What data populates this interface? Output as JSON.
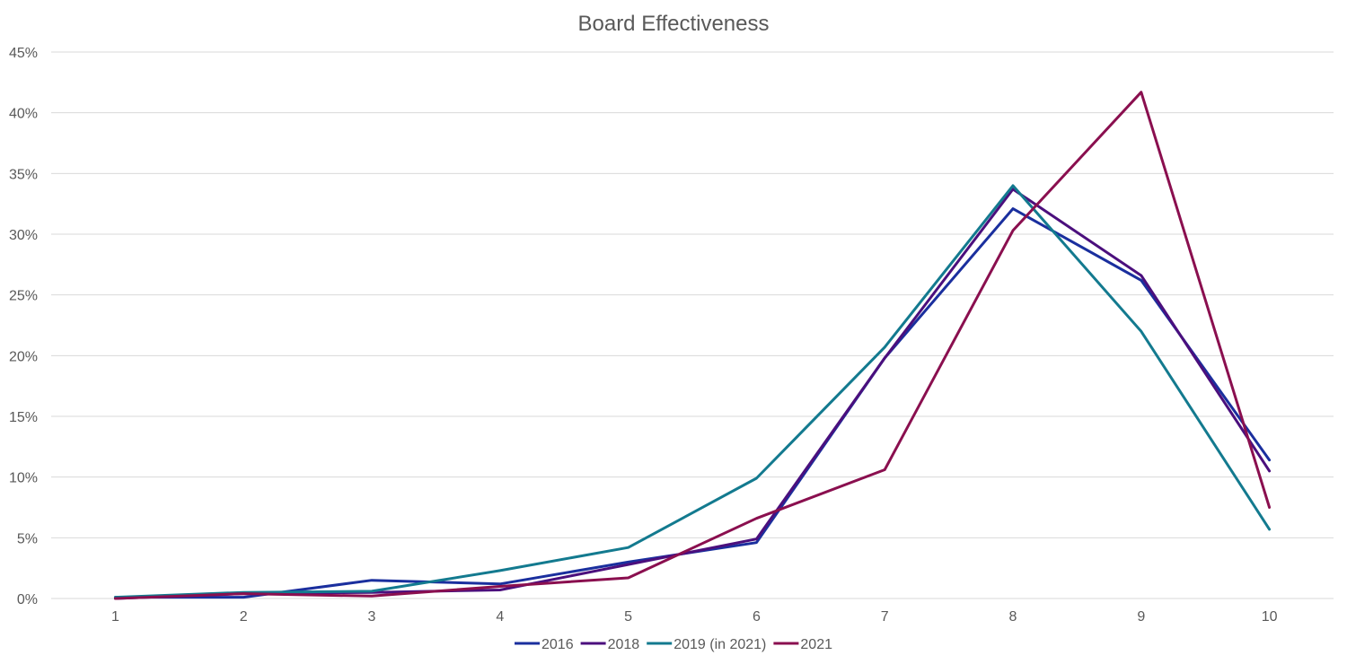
{
  "chart_data": {
    "type": "line",
    "title": "Board Effectiveness",
    "xlabel": "",
    "ylabel": "",
    "categories": [
      "1",
      "2",
      "3",
      "4",
      "5",
      "6",
      "7",
      "8",
      "9",
      "10"
    ],
    "ylim": [
      0,
      45
    ],
    "y_ticks": [
      "0%",
      "5%",
      "10%",
      "15%",
      "20%",
      "25%",
      "30%",
      "35%",
      "40%",
      "45%"
    ],
    "grid": true,
    "legend_position": "bottom",
    "series": [
      {
        "name": "2016",
        "color": "#1a2f9e",
        "values": [
          0.1,
          0.1,
          1.5,
          1.2,
          3.0,
          4.6,
          19.8,
          32.1,
          26.2,
          11.4
        ]
      },
      {
        "name": "2018",
        "color": "#4b0f7d",
        "values": [
          0.0,
          0.4,
          0.5,
          0.7,
          2.8,
          4.9,
          19.8,
          33.7,
          26.6,
          10.5
        ]
      },
      {
        "name": "2019 (in 2021)",
        "color": "#137a8f",
        "values": [
          0.1,
          0.5,
          0.6,
          2.3,
          4.2,
          9.9,
          20.7,
          34.0,
          22.0,
          5.7
        ]
      },
      {
        "name": "2021",
        "color": "#8a0f4f",
        "values": [
          0.0,
          0.4,
          0.2,
          1.0,
          1.7,
          6.6,
          10.6,
          30.3,
          41.7,
          7.5
        ]
      }
    ]
  }
}
